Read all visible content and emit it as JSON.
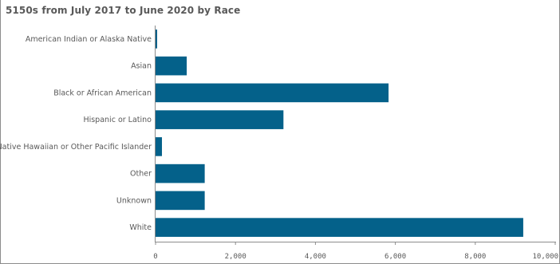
{
  "title": "5150s from July 2017 to June 2020 by Race",
  "chart_data": {
    "type": "bar",
    "orientation": "horizontal",
    "title": "5150s from July 2017 to June 2020 by Race",
    "xlabel": "",
    "ylabel": "",
    "categories": [
      "American Indian or Alaska Native",
      "Asian",
      "Black or African American",
      "Hispanic or Latino",
      "Native Hawaiian or Other Pacific Islander",
      "Other",
      "Unknown",
      "White"
    ],
    "values": [
      40,
      780,
      5830,
      3200,
      160,
      1230,
      1230,
      9200
    ],
    "xlim": [
      0,
      10000
    ],
    "xticks": [
      0,
      2000,
      4000,
      6000,
      8000,
      10000
    ],
    "xtick_labels": [
      "0",
      "2,000",
      "4,000",
      "6,000",
      "8,000",
      "10,000"
    ],
    "bar_color": "#04618a",
    "grid": false
  }
}
